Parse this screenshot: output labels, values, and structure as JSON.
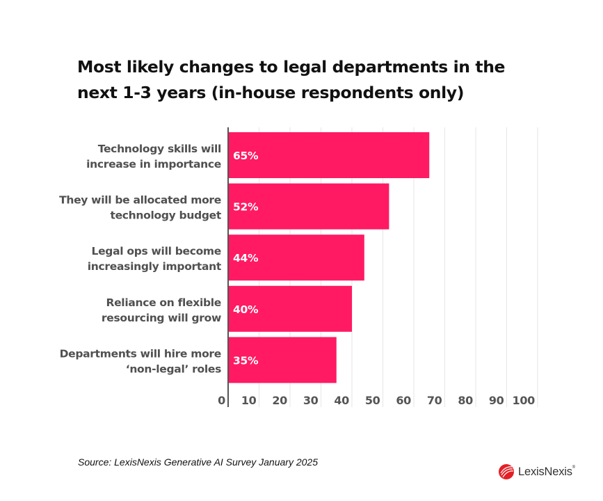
{
  "title": "Most likely changes to legal departments in the next 1-3 years (in-house respondents only)",
  "source": "Source: LexisNexis Generative AI Survey January 2025",
  "logo": {
    "text": "LexisNexis",
    "registered": "®",
    "icon": "lexisnexis-logo-icon"
  },
  "colors": {
    "bar": "#FF1A63",
    "grid": "#E6E6E6",
    "axis": "#555555",
    "category_text": "#505050",
    "title_text": "#111111"
  },
  "chart_data": {
    "type": "bar",
    "orientation": "horizontal",
    "title": "Most likely changes to legal departments in the next 1-3 years (in-house respondents only)",
    "xlabel": "",
    "ylabel": "",
    "categories": [
      [
        "Technology skills will",
        "increase in importance"
      ],
      [
        "They will be allocated more",
        "technology budget"
      ],
      [
        "Legal ops will become",
        "increasingly important"
      ],
      [
        "Reliance on flexible",
        "resourcing will grow"
      ],
      [
        "Departments will hire more",
        "‘non-legal’ roles"
      ]
    ],
    "values": [
      65,
      52,
      44,
      40,
      35
    ],
    "value_labels": [
      "65%",
      "52%",
      "44%",
      "40%",
      "35%"
    ],
    "xlim": [
      0,
      100
    ],
    "xticks": [
      0,
      10,
      20,
      30,
      40,
      50,
      60,
      70,
      80,
      90,
      100
    ],
    "xtick_labels": [
      "0",
      "10",
      "20",
      "30",
      "40",
      "50",
      "60",
      "70",
      "80",
      "90",
      "100"
    ],
    "grid": true,
    "legend": "none"
  }
}
